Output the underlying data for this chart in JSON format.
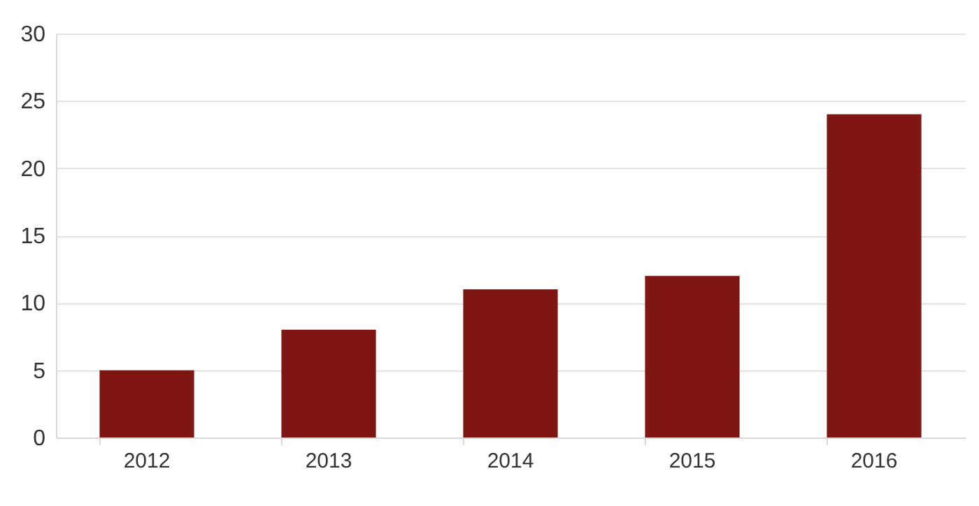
{
  "chart_data": {
    "type": "bar",
    "categories": [
      "2012",
      "2013",
      "2014",
      "2015",
      "2016"
    ],
    "values": [
      5,
      8,
      11,
      12,
      24
    ],
    "color": "#7f1715",
    "ylim": [
      0,
      30
    ],
    "yticks": [
      0,
      5,
      10,
      15,
      20,
      25,
      30
    ],
    "grid": "y"
  }
}
